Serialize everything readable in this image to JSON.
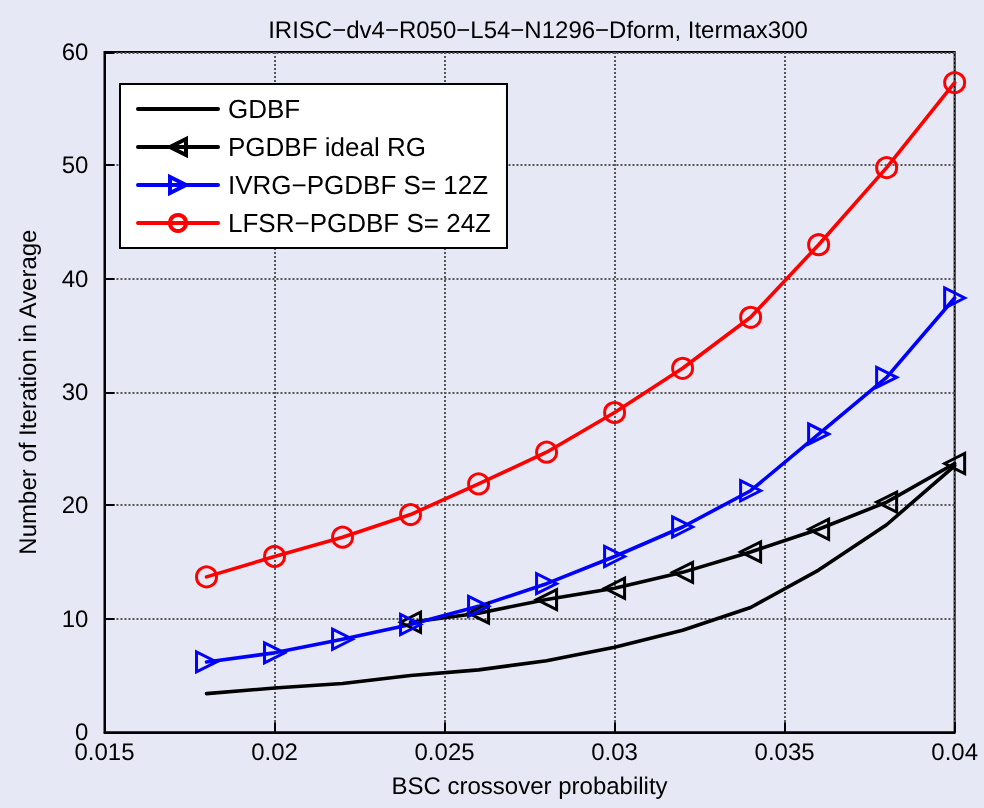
{
  "chart_data": {
    "type": "line",
    "title": "IRISC−dv4−R050−L54−N1296−Dform, Itermax300",
    "xlabel": "BSC crossover probability",
    "ylabel": "Number of Iteration in Average",
    "xlim": [
      0.015,
      0.04
    ],
    "xticks": [
      0.015,
      0.02,
      0.025,
      0.03,
      0.035,
      0.04
    ],
    "ylim": [
      0,
      60
    ],
    "yticks": [
      0,
      10,
      20,
      30,
      40,
      50,
      60
    ],
    "grid": true,
    "legend": "top left",
    "line_style": "solid",
    "series": [
      {
        "name": "GDBF",
        "color": "#000000",
        "marker": "none",
        "x": [
          0.018,
          0.02,
          0.022,
          0.024,
          0.026,
          0.028,
          0.03,
          0.032,
          0.034,
          0.036,
          0.038,
          0.04
        ],
        "values": [
          3.4,
          3.9,
          4.3,
          5.0,
          5.5,
          6.3,
          7.5,
          9.0,
          11.0,
          14.3,
          18.3,
          23.5
        ]
      },
      {
        "name": "PGDBF ideal RG",
        "color": "#000000",
        "marker": "triangle-left",
        "x": [
          0.024,
          0.026,
          0.028,
          0.03,
          0.032,
          0.034,
          0.036,
          0.038,
          0.04
        ],
        "values": [
          9.7,
          10.5,
          11.7,
          12.7,
          14.1,
          15.9,
          17.9,
          20.3,
          23.7
        ]
      },
      {
        "name": "IVRG−PGDBF S= 12Z",
        "color": "#0000ff",
        "marker": "triangle-right",
        "x": [
          0.018,
          0.02,
          0.022,
          0.024,
          0.026,
          0.028,
          0.03,
          0.032,
          0.034,
          0.036,
          0.038,
          0.04
        ],
        "values": [
          6.2,
          7.0,
          8.2,
          9.5,
          11.1,
          13.1,
          15.5,
          18.1,
          21.3,
          26.3,
          31.3,
          38.3
        ]
      },
      {
        "name": "LFSR−PGDBF S= 24Z",
        "color": "#ff0000",
        "marker": "circle",
        "x": [
          0.018,
          0.02,
          0.022,
          0.024,
          0.026,
          0.028,
          0.03,
          0.032,
          0.034,
          0.036,
          0.038,
          0.04
        ],
        "values": [
          13.7,
          15.5,
          17.2,
          19.2,
          21.9,
          24.7,
          28.2,
          32.1,
          36.6,
          43.0,
          49.8,
          57.3
        ]
      }
    ]
  }
}
